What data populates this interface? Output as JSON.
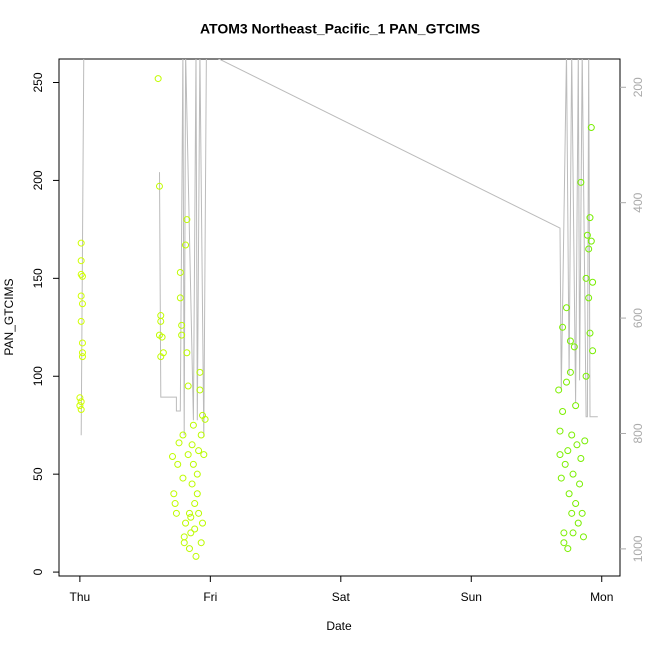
{
  "chart_data": {
    "type": "scatter",
    "title": "ATOM3 Northeast_Pacific_1 PAN_GTCIMS",
    "xlabel": "Date",
    "ylabel": "PAN_GTCIMS",
    "x": [
      0.01,
      0.01,
      0.01,
      0.02,
      0.01,
      0.02,
      0.01,
      0.02,
      0.02,
      0.02,
      0.0,
      0.01,
      0.0,
      0.01,
      0.6,
      0.61,
      0.62,
      0.62,
      0.61,
      0.63,
      0.62,
      0.64,
      0.71,
      0.72,
      0.73,
      0.74,
      0.75,
      0.76,
      0.77,
      0.77,
      0.78,
      0.78,
      0.79,
      0.79,
      0.8,
      0.8,
      0.81,
      0.81,
      0.82,
      0.82,
      0.83,
      0.83,
      0.84,
      0.84,
      0.85,
      0.85,
      0.86,
      0.86,
      0.87,
      0.87,
      0.88,
      0.88,
      0.89,
      0.9,
      0.9,
      0.91,
      0.91,
      0.92,
      0.92,
      0.93,
      0.93,
      0.94,
      0.94,
      0.95,
      0.96,
      3.67,
      3.68,
      3.68,
      3.69,
      3.7,
      3.7,
      3.71,
      3.71,
      3.72,
      3.73,
      3.73,
      3.74,
      3.74,
      3.75,
      3.76,
      3.76,
      3.77,
      3.77,
      3.78,
      3.78,
      3.79,
      3.8,
      3.8,
      3.81,
      3.82,
      3.83,
      3.84,
      3.84,
      3.85,
      3.86,
      3.87,
      3.88,
      3.88,
      3.89,
      3.9,
      3.9,
      3.91,
      3.91,
      3.92,
      3.92,
      3.93,
      3.93
    ],
    "values": [
      168,
      159,
      152,
      151,
      141,
      137,
      128,
      117,
      112,
      110,
      89,
      87,
      85,
      83,
      252,
      197,
      131,
      128,
      121,
      120,
      110,
      112,
      59,
      40,
      35,
      30,
      55,
      66,
      153,
      140,
      126,
      121,
      70,
      48,
      18,
      15,
      25,
      167,
      180,
      112,
      95,
      60,
      30,
      12,
      28,
      20,
      45,
      65,
      75,
      55,
      35,
      22,
      8,
      40,
      50,
      62,
      30,
      102,
      93,
      70,
      15,
      80,
      25,
      60,
      78,
      93,
      72,
      60,
      48,
      125,
      82,
      20,
      15,
      55,
      135,
      97,
      12,
      62,
      40,
      102,
      118,
      30,
      70,
      50,
      20,
      115,
      35,
      85,
      65,
      25,
      45,
      199,
      58,
      30,
      18,
      67,
      150,
      100,
      172,
      165,
      140,
      181,
      122,
      227,
      169,
      148,
      113
    ],
    "color_range": [
      "#d0ff00",
      "#77ee00"
    ],
    "xlim": [
      -0.16,
      4.14
    ],
    "xticks": [
      {
        "value": 0,
        "label": "Thu"
      },
      {
        "value": 1,
        "label": "Fri"
      },
      {
        "value": 2,
        "label": "Sat"
      },
      {
        "value": 3,
        "label": "Sun"
      },
      {
        "value": 4,
        "label": "Mon"
      }
    ],
    "ylim": [
      -2,
      262
    ],
    "yticks": [
      0,
      50,
      100,
      150,
      200,
      250
    ],
    "y2lim": [
      1047,
      151
    ],
    "y2ticks": [
      200,
      400,
      600,
      800,
      1000
    ],
    "line": {
      "type": "line",
      "axis": "y2",
      "color": "#bbbbbb",
      "x": [
        0.01,
        0.03,
        null,
        0.61,
        0.62,
        0.74,
        0.74,
        0.77,
        0.79,
        0.8,
        0.81,
        0.87,
        0.89,
        0.9,
        0.92,
        0.95,
        0.97,
        3.68,
        3.69,
        3.73,
        3.75,
        3.77,
        3.8,
        3.82,
        3.83,
        3.85,
        3.88,
        3.89,
        3.9,
        3.91,
        3.97
      ],
      "values": [
        803,
        140,
        null,
        347,
        737,
        737,
        761,
        761,
        140,
        803,
        140,
        777,
        140,
        777,
        140,
        806,
        140,
        444,
        725,
        140,
        699,
        140,
        747,
        140,
        708,
        140,
        771,
        771,
        140,
        771,
        771
      ]
    }
  }
}
